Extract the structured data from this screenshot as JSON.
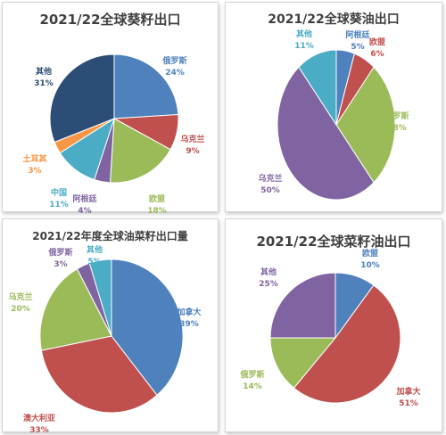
{
  "chart_data": [
    {
      "type": "pie",
      "title": "2021/22全球葵籽出口",
      "slices": [
        {
          "name": "俄罗斯",
          "value": 24,
          "label": "24%",
          "color": "#4f81bd"
        },
        {
          "name": "乌克兰",
          "value": 9,
          "label": "9%",
          "color": "#c0504d"
        },
        {
          "name": "欧盟",
          "value": 18,
          "label": "18%",
          "color": "#9bbb59"
        },
        {
          "name": "阿根廷",
          "value": 4,
          "label": "4%",
          "color": "#8064a2"
        },
        {
          "name": "中国",
          "value": 11,
          "label": "11%",
          "color": "#4bacc6"
        },
        {
          "name": "土耳其",
          "value": 3,
          "label": "3%",
          "color": "#f79646"
        },
        {
          "name": "其他",
          "value": 31,
          "label": "31%",
          "color": "#2c4d75"
        }
      ]
    },
    {
      "type": "pie",
      "title": "2021/22全球葵油出口",
      "slices": [
        {
          "name": "阿根廷",
          "value": 5,
          "label": "5%",
          "color": "#4f81bd"
        },
        {
          "name": "欧盟",
          "value": 6,
          "label": "6%",
          "color": "#c0504d"
        },
        {
          "name": "俄罗斯",
          "value": 28,
          "label": "28%",
          "color": "#9bbb59"
        },
        {
          "name": "乌克兰",
          "value": 50,
          "label": "50%",
          "color": "#8064a2"
        },
        {
          "name": "其他",
          "value": 11,
          "label": "11%",
          "color": "#4bacc6"
        }
      ]
    },
    {
      "type": "pie",
      "title": "2021/22年度全球油菜籽出口量",
      "slices": [
        {
          "name": "加拿大",
          "value": 39,
          "label": "39%",
          "color": "#4f81bd"
        },
        {
          "name": "澳大利亚",
          "value": 33,
          "label": "33%",
          "color": "#c0504d"
        },
        {
          "name": "乌克兰",
          "value": 20,
          "label": "20%",
          "color": "#9bbb59"
        },
        {
          "name": "俄罗斯",
          "value": 3,
          "label": "3%",
          "color": "#8064a2"
        },
        {
          "name": "其他",
          "value": 5,
          "label": "5%",
          "color": "#4bacc6"
        }
      ]
    },
    {
      "type": "pie",
      "title": "2021/22全球菜籽油出口",
      "slices": [
        {
          "name": "欧盟",
          "value": 10,
          "label": "10%",
          "color": "#4f81bd"
        },
        {
          "name": "加拿大",
          "value": 51,
          "label": "51%",
          "color": "#c0504d"
        },
        {
          "name": "俄罗斯",
          "value": 14,
          "label": "14%",
          "color": "#9bbb59"
        },
        {
          "name": "其他",
          "value": 25,
          "label": "25%",
          "color": "#8064a2"
        }
      ]
    }
  ]
}
